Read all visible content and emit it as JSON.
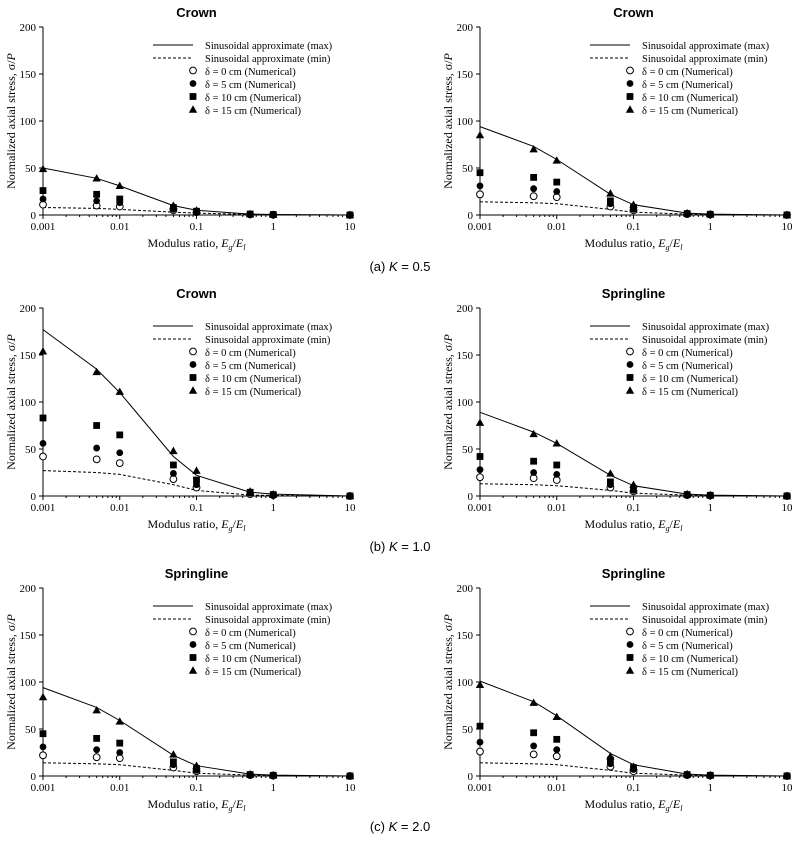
{
  "chart_data": [
    {
      "type": "line",
      "title": "Crown",
      "xlabel": "Modulus ratio, Eg/El",
      "ylabel": "Normalized axial stress, σ/P",
      "xscale": "log",
      "xlim": [
        0.001,
        10
      ],
      "ylim": [
        0,
        200
      ],
      "xticks": [
        "0.001",
        "0.01",
        "0.1",
        "1",
        "10"
      ],
      "yticks": [
        "0",
        "50",
        "100",
        "150",
        "200"
      ],
      "legend_position": "top-right",
      "x": [
        0.001,
        0.005,
        0.01,
        0.05,
        0.1,
        0.5,
        1,
        10
      ],
      "series": [
        {
          "name": "Sinusoidal approximate (max)",
          "style": "solid-line",
          "values": [
            50,
            39,
            31,
            10,
            5,
            1,
            0.5,
            0
          ]
        },
        {
          "name": "Sinusoidal approximate (min)",
          "style": "dashed-line",
          "values": [
            8,
            7,
            6,
            3,
            2,
            0.5,
            0.3,
            0
          ]
        },
        {
          "name": "δ =  0 cm (Numerical)",
          "style": "open-circle",
          "values": [
            11,
            10,
            9,
            5,
            3,
            0.5,
            0.3,
            0
          ]
        },
        {
          "name": "δ =  5 cm (Numerical)",
          "style": "filled-circle",
          "values": [
            17,
            15,
            13,
            6,
            3,
            1,
            0.5,
            0
          ]
        },
        {
          "name": "δ = 10 cm (Numerical)",
          "style": "filled-square",
          "values": [
            26,
            22,
            17,
            8,
            4,
            1,
            0.5,
            0
          ]
        },
        {
          "name": "δ = 15 cm (Numerical)",
          "style": "filled-triangle",
          "values": [
            49,
            39,
            31,
            10,
            5,
            1,
            0.5,
            0
          ]
        }
      ]
    },
    {
      "type": "line",
      "title": "Crown",
      "xlabel": "Modulus ratio, Eg/El",
      "ylabel": "Normalized axial stress, σ/P",
      "xscale": "log",
      "xlim": [
        0.001,
        10
      ],
      "ylim": [
        0,
        200
      ],
      "xticks": [
        "0.001",
        "0.01",
        "0.1",
        "1",
        "10"
      ],
      "yticks": [
        "0",
        "50",
        "100",
        "150",
        "200"
      ],
      "legend_position": "top-right",
      "x": [
        0.001,
        0.005,
        0.01,
        0.05,
        0.1,
        0.5,
        1,
        10
      ],
      "series": [
        {
          "name": "Sinusoidal approximate (max)",
          "style": "solid-line",
          "values": [
            94,
            73,
            59,
            22,
            11,
            2,
            1,
            0
          ]
        },
        {
          "name": "Sinusoidal approximate (min)",
          "style": "dashed-line",
          "values": [
            14,
            13,
            12,
            6,
            3,
            1,
            0.5,
            0
          ]
        },
        {
          "name": "δ =  0 cm (Numerical)",
          "style": "open-circle",
          "values": [
            22,
            20,
            19,
            9,
            5,
            1,
            0.5,
            0
          ]
        },
        {
          "name": "δ =  5 cm (Numerical)",
          "style": "filled-circle",
          "values": [
            31,
            28,
            25,
            12,
            6,
            1,
            0.5,
            0
          ]
        },
        {
          "name": "δ = 10 cm (Numerical)",
          "style": "filled-square",
          "values": [
            45,
            40,
            35,
            15,
            8,
            1.5,
            0.7,
            0
          ]
        },
        {
          "name": "δ = 15 cm (Numerical)",
          "style": "filled-triangle",
          "values": [
            85,
            70,
            58,
            23,
            11,
            2,
            1,
            0
          ]
        }
      ]
    },
    {
      "type": "line",
      "title": "Crown",
      "xlabel": "Modulus ratio, Eg/El",
      "ylabel": "Normalized axial stress, σ/P",
      "xscale": "log",
      "xlim": [
        0.001,
        10
      ],
      "ylim": [
        0,
        200
      ],
      "xticks": [
        "0.001",
        "0.01",
        "0.1",
        "1",
        "10"
      ],
      "yticks": [
        "0",
        "50",
        "100",
        "150",
        "200"
      ],
      "legend_position": "top-right",
      "x": [
        0.001,
        0.005,
        0.01,
        0.05,
        0.1,
        0.5,
        1,
        10
      ],
      "series": [
        {
          "name": "Sinusoidal approximate (max)",
          "style": "solid-line",
          "values": [
            177,
            135,
            110,
            42,
            22,
            4,
            2,
            0
          ]
        },
        {
          "name": "Sinusoidal approximate (min)",
          "style": "dashed-line",
          "values": [
            27,
            25,
            23,
            12,
            6,
            1,
            0.5,
            0
          ]
        },
        {
          "name": "δ =  0 cm (Numerical)",
          "style": "open-circle",
          "values": [
            42,
            39,
            35,
            18,
            9,
            2,
            1,
            0
          ]
        },
        {
          "name": "δ =  5 cm (Numerical)",
          "style": "filled-circle",
          "values": [
            56,
            51,
            46,
            24,
            12,
            3,
            1,
            0
          ]
        },
        {
          "name": "δ = 10 cm (Numerical)",
          "style": "filled-square",
          "values": [
            83,
            75,
            65,
            33,
            17,
            4,
            1.5,
            0
          ]
        },
        {
          "name": "δ = 15 cm (Numerical)",
          "style": "filled-triangle",
          "values": [
            154,
            132,
            111,
            48,
            27,
            5,
            2,
            0
          ]
        }
      ]
    },
    {
      "type": "line",
      "title": "Springline",
      "xlabel": "Modulus ratio, Eg/El",
      "ylabel": "Normalized axial stress, σ/P",
      "xscale": "log",
      "xlim": [
        0.001,
        10
      ],
      "ylim": [
        0,
        200
      ],
      "xticks": [
        "0.001",
        "0.01",
        "0.1",
        "1",
        "10"
      ],
      "yticks": [
        "0",
        "50",
        "100",
        "150",
        "200"
      ],
      "legend_position": "top-right",
      "x": [
        0.001,
        0.005,
        0.01,
        0.05,
        0.1,
        0.5,
        1,
        10
      ],
      "series": [
        {
          "name": "Sinusoidal approximate (max)",
          "style": "solid-line",
          "values": [
            89,
            68,
            56,
            22,
            11,
            2,
            1,
            0
          ]
        },
        {
          "name": "Sinusoidal approximate (min)",
          "style": "dashed-line",
          "values": [
            13,
            12,
            11,
            6,
            3,
            1,
            0.5,
            0
          ]
        },
        {
          "name": "δ =  0 cm (Numerical)",
          "style": "open-circle",
          "values": [
            20,
            19,
            17,
            9,
            5,
            1,
            0.5,
            0
          ]
        },
        {
          "name": "δ =  5 cm (Numerical)",
          "style": "filled-circle",
          "values": [
            28,
            25,
            23,
            12,
            6,
            1,
            0.5,
            0
          ]
        },
        {
          "name": "δ = 10 cm (Numerical)",
          "style": "filled-square",
          "values": [
            42,
            37,
            33,
            15,
            8,
            1.5,
            0.7,
            0
          ]
        },
        {
          "name": "δ = 15 cm (Numerical)",
          "style": "filled-triangle",
          "values": [
            78,
            66,
            56,
            24,
            12,
            2,
            1,
            0
          ]
        }
      ]
    },
    {
      "type": "line",
      "title": "Springline",
      "xlabel": "Modulus ratio, Eg/El",
      "ylabel": "Normalized axial stress, σ/P",
      "xscale": "log",
      "xlim": [
        0.001,
        10
      ],
      "ylim": [
        0,
        200
      ],
      "xticks": [
        "0.001",
        "0.01",
        "0.1",
        "1",
        "10"
      ],
      "yticks": [
        "0",
        "50",
        "100",
        "150",
        "200"
      ],
      "legend_position": "top-right",
      "x": [
        0.001,
        0.005,
        0.01,
        0.05,
        0.1,
        0.5,
        1,
        10
      ],
      "series": [
        {
          "name": "Sinusoidal approximate (max)",
          "style": "solid-line",
          "values": [
            94,
            73,
            59,
            22,
            11,
            2,
            1,
            0
          ]
        },
        {
          "name": "Sinusoidal approximate (min)",
          "style": "dashed-line",
          "values": [
            14,
            13,
            12,
            6,
            3,
            1,
            0.5,
            0
          ]
        },
        {
          "name": "δ =  0 cm (Numerical)",
          "style": "open-circle",
          "values": [
            22,
            20,
            19,
            9,
            5,
            1,
            0.5,
            0
          ]
        },
        {
          "name": "δ =  5 cm (Numerical)",
          "style": "filled-circle",
          "values": [
            31,
            28,
            25,
            12,
            6,
            1,
            0.5,
            0
          ]
        },
        {
          "name": "δ = 10 cm (Numerical)",
          "style": "filled-square",
          "values": [
            45,
            40,
            35,
            15,
            8,
            1.5,
            0.7,
            0
          ]
        },
        {
          "name": "δ = 15 cm (Numerical)",
          "style": "filled-triangle",
          "values": [
            84,
            70,
            58,
            23,
            11,
            2,
            1,
            0
          ]
        }
      ]
    },
    {
      "type": "line",
      "title": "Springline",
      "xlabel": "Modulus ratio, Eg/El",
      "ylabel": "Normalized axial stress, σ/P",
      "xscale": "log",
      "xlim": [
        0.001,
        10
      ],
      "ylim": [
        0,
        200
      ],
      "xticks": [
        "0.001",
        "0.01",
        "0.1",
        "1",
        "10"
      ],
      "yticks": [
        "0",
        "50",
        "100",
        "150",
        "200"
      ],
      "legend_position": "top-right",
      "x": [
        0.001,
        0.005,
        0.01,
        0.05,
        0.1,
        0.5,
        1,
        10
      ],
      "series": [
        {
          "name": "Sinusoidal approximate (max)",
          "style": "solid-line",
          "values": [
            101,
            79,
            64,
            24,
            12,
            2,
            1,
            0
          ]
        },
        {
          "name": "Sinusoidal approximate (min)",
          "style": "dashed-line",
          "values": [
            14,
            13,
            12,
            6,
            3,
            1,
            0.5,
            0
          ]
        },
        {
          "name": "δ =  0 cm (Numerical)",
          "style": "open-circle",
          "values": [
            26,
            23,
            21,
            10,
            5,
            1,
            0.5,
            0
          ]
        },
        {
          "name": "δ =  5 cm (Numerical)",
          "style": "filled-circle",
          "values": [
            36,
            32,
            28,
            13,
            7,
            1,
            0.5,
            0
          ]
        },
        {
          "name": "δ = 10 cm (Numerical)",
          "style": "filled-square",
          "values": [
            53,
            46,
            39,
            17,
            9,
            1.5,
            0.7,
            0
          ]
        },
        {
          "name": "δ = 15 cm (Numerical)",
          "style": "filled-triangle",
          "values": [
            97,
            78,
            63,
            21,
            10,
            2,
            1,
            0
          ]
        }
      ]
    }
  ],
  "captions": [
    {
      "prefix": "(a)",
      "k": "K",
      "rest": " = 0.5"
    },
    {
      "prefix": "(b)",
      "k": "K",
      "rest": " = 1.0"
    },
    {
      "prefix": "(c)",
      "k": "K",
      "rest": " = 2.0"
    }
  ]
}
